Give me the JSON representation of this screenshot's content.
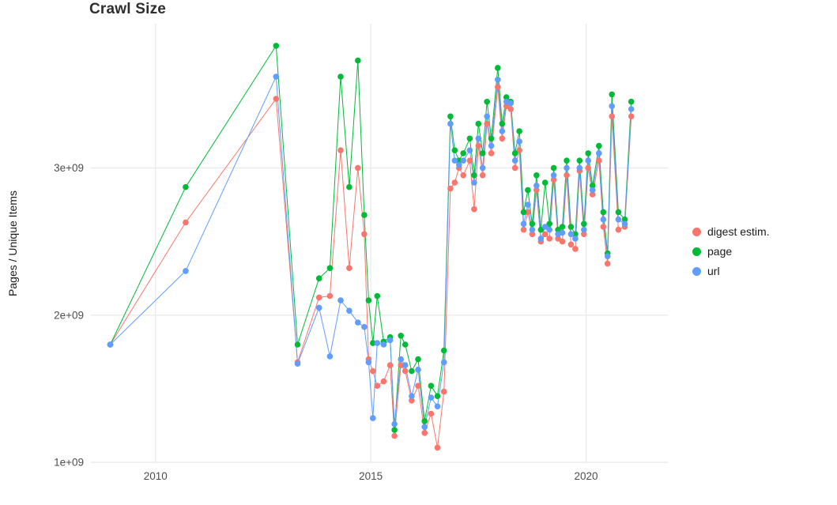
{
  "title": "Crawl Size",
  "axes": {
    "ylabel": "Pages / Unique Items",
    "xlabel": ""
  },
  "colors": {
    "digest": "#F8766D",
    "page": "#00BA38",
    "url": "#619CFF",
    "grid": "#E8E8E8",
    "tick_text": "#4d4d4d"
  },
  "chart_data": {
    "type": "line",
    "title": "Crawl Size",
    "ylabel": "Pages / Unique Items",
    "xlabel": "",
    "value_unit": "pages (x 1e9)",
    "grid": "major",
    "legend_position": "right",
    "xlim": [
      2008.5,
      2021.9
    ],
    "ylim": [
      1.0,
      3.98
    ],
    "x_ticks": [
      {
        "v": 2010,
        "label": "2010"
      },
      {
        "v": 2015,
        "label": "2015"
      },
      {
        "v": 2020,
        "label": "2020"
      }
    ],
    "y_ticks": [
      {
        "v": 1,
        "label": "1e+09"
      },
      {
        "v": 2,
        "label": "2e+09"
      },
      {
        "v": 3,
        "label": "3e+09"
      }
    ],
    "x": [
      2008.95,
      2010.7,
      2012.8,
      2013.3,
      2013.8,
      2014.05,
      2014.3,
      2014.5,
      2014.7,
      2014.85,
      2014.95,
      2015.05,
      2015.15,
      2015.3,
      2015.45,
      2015.55,
      2015.7,
      2015.8,
      2015.95,
      2016.1,
      2016.25,
      2016.4,
      2016.55,
      2016.7,
      2016.85,
      2016.95,
      2017.05,
      2017.15,
      2017.3,
      2017.4,
      2017.5,
      2017.6,
      2017.7,
      2017.8,
      2017.95,
      2018.05,
      2018.15,
      2018.25,
      2018.35,
      2018.45,
      2018.55,
      2018.65,
      2018.75,
      2018.85,
      2018.95,
      2019.05,
      2019.15,
      2019.25,
      2019.35,
      2019.45,
      2019.55,
      2019.65,
      2019.75,
      2019.85,
      2019.95,
      2020.05,
      2020.15,
      2020.3,
      2020.4,
      2020.5,
      2020.6,
      2020.75,
      2020.9,
      2021.05
    ],
    "series": [
      {
        "name": "digest estim.",
        "color": "#F8766D",
        "values": [
          1.8,
          2.63,
          3.47,
          1.68,
          2.12,
          2.13,
          3.12,
          2.32,
          3.0,
          2.55,
          1.7,
          1.62,
          1.52,
          1.55,
          1.66,
          1.18,
          1.66,
          1.62,
          1.42,
          1.52,
          1.2,
          1.33,
          1.1,
          1.48,
          2.86,
          2.9,
          3.0,
          2.95,
          3.05,
          2.72,
          3.15,
          2.95,
          3.3,
          3.1,
          3.55,
          3.2,
          3.42,
          3.4,
          3.0,
          3.12,
          2.58,
          2.7,
          2.55,
          2.85,
          2.5,
          2.55,
          2.52,
          2.92,
          2.52,
          2.5,
          2.95,
          2.48,
          2.45,
          2.98,
          2.55,
          3.0,
          2.82,
          3.05,
          2.6,
          2.35,
          3.35,
          2.58,
          2.6,
          3.35
        ]
      },
      {
        "name": "page",
        "color": "#00BA38",
        "values": [
          1.8,
          2.87,
          3.83,
          1.8,
          2.25,
          2.32,
          3.62,
          2.87,
          3.73,
          2.68,
          2.1,
          1.81,
          2.13,
          1.82,
          1.85,
          1.22,
          1.86,
          1.8,
          1.62,
          1.7,
          1.28,
          1.52,
          1.45,
          1.76,
          3.35,
          3.12,
          3.05,
          3.1,
          3.2,
          2.95,
          3.3,
          3.1,
          3.45,
          3.2,
          3.68,
          3.3,
          3.48,
          3.45,
          3.1,
          3.25,
          2.7,
          2.85,
          2.62,
          2.95,
          2.58,
          2.9,
          2.62,
          3.0,
          2.58,
          2.6,
          3.05,
          2.6,
          2.55,
          3.05,
          2.62,
          3.1,
          2.88,
          3.15,
          2.7,
          2.42,
          3.5,
          2.7,
          2.65,
          3.45
        ]
      },
      {
        "name": "url",
        "color": "#619CFF",
        "values": [
          1.8,
          2.3,
          3.62,
          1.67,
          2.05,
          1.72,
          2.1,
          2.03,
          1.95,
          1.92,
          1.68,
          1.3,
          1.81,
          1.8,
          1.83,
          1.26,
          1.7,
          1.66,
          1.45,
          1.63,
          1.24,
          1.44,
          1.38,
          1.68,
          3.3,
          3.05,
          3.02,
          3.05,
          3.12,
          2.9,
          3.2,
          3.0,
          3.35,
          3.15,
          3.6,
          3.25,
          3.45,
          3.44,
          3.05,
          3.18,
          2.62,
          2.75,
          2.58,
          2.88,
          2.52,
          2.6,
          2.58,
          2.95,
          2.55,
          2.56,
          3.0,
          2.55,
          2.52,
          3.0,
          2.58,
          3.05,
          2.85,
          3.1,
          2.65,
          2.4,
          3.42,
          2.65,
          2.62,
          3.4
        ]
      }
    ]
  },
  "legend": {
    "items": [
      "digest estim.",
      "page",
      "url"
    ]
  }
}
